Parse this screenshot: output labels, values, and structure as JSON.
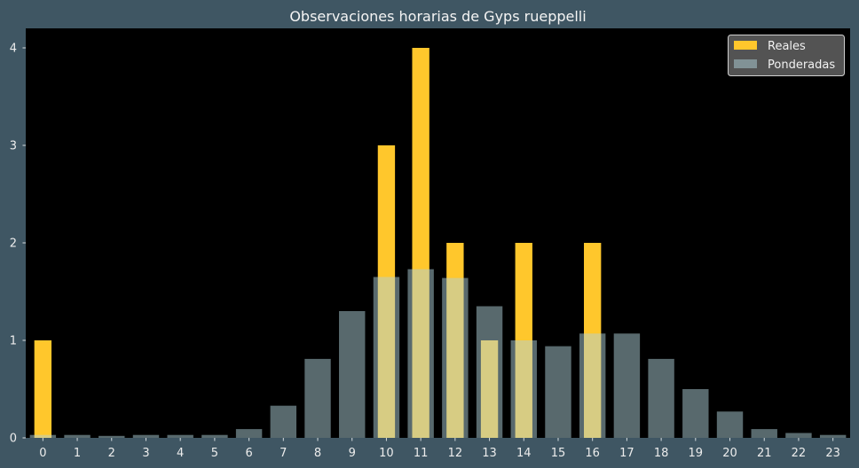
{
  "chart_data": {
    "type": "bar",
    "title": "Observaciones horarias de Gyps rueppelli",
    "xlabel": "",
    "ylabel": "",
    "categories": [
      "0",
      "1",
      "2",
      "3",
      "4",
      "5",
      "6",
      "7",
      "8",
      "9",
      "10",
      "11",
      "12",
      "13",
      "14",
      "15",
      "16",
      "17",
      "18",
      "19",
      "20",
      "21",
      "22",
      "23"
    ],
    "xlim": [
      -0.5,
      23.5
    ],
    "ylim": [
      0,
      4.2
    ],
    "y_ticks": [
      0,
      1,
      2,
      3,
      4
    ],
    "grid": false,
    "legend_position": "top-right",
    "series": [
      {
        "name": "Reales",
        "color": "#ffc72c",
        "values": [
          1,
          0,
          0,
          0,
          0,
          0,
          0,
          0,
          0,
          0,
          3,
          4,
          2,
          1,
          2,
          0,
          2,
          0,
          0,
          0,
          0,
          0,
          0,
          0
        ]
      },
      {
        "name": "Ponderadas",
        "color": "#b0d2da",
        "values": [
          0.03,
          0.03,
          0.02,
          0.03,
          0.03,
          0.03,
          0.09,
          0.33,
          0.81,
          1.3,
          1.65,
          1.73,
          1.64,
          1.35,
          1.0,
          0.94,
          1.07,
          1.07,
          0.81,
          0.5,
          0.27,
          0.09,
          0.05,
          0.03
        ]
      }
    ]
  },
  "colors": {
    "figure_background": "#3f5663",
    "plot_background": "#000000",
    "legend_background": "#575757",
    "legend_border": "#cfcfcf"
  }
}
